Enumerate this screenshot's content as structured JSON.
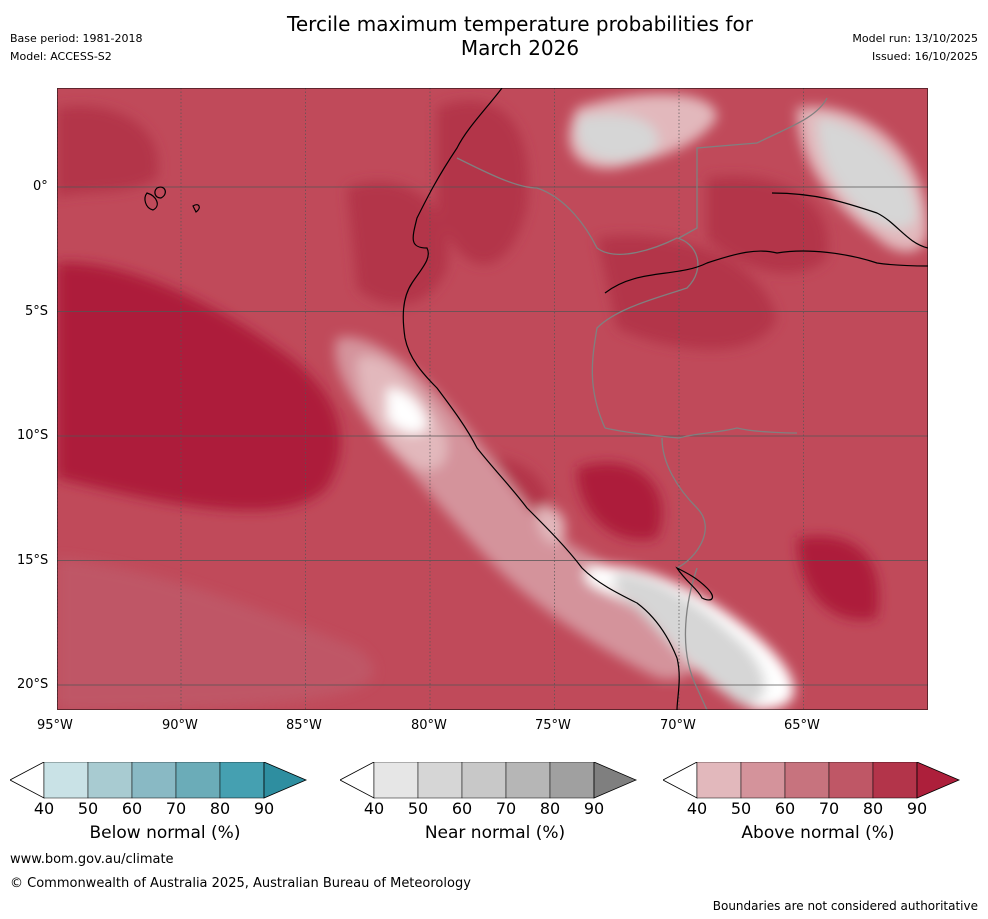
{
  "header": {
    "title_line1": "Tercile maximum temperature probabilities for",
    "title_line2": "March 2026",
    "base_period": "Base period: 1981-2018",
    "model": "Model: ACCESS-S2",
    "model_run": "Model run: 13/10/2025",
    "issued": "Issued: 16/10/2025"
  },
  "map": {
    "lat_labels": [
      "0°",
      "5°S",
      "10°S",
      "15°S",
      "20°S"
    ],
    "lon_labels": [
      "95°W",
      "90°W",
      "85°W",
      "80°W",
      "75°W",
      "70°W",
      "65°W"
    ]
  },
  "colorbars": [
    {
      "label": "Below normal (%)",
      "ticks": [
        "40",
        "50",
        "60",
        "70",
        "80",
        "90"
      ],
      "colors": [
        "#c9e2e6",
        "#a8cbd1",
        "#89b9c4",
        "#6bacb8",
        "#45a0b1",
        "#2e8ea0"
      ]
    },
    {
      "label": "Near normal (%)",
      "ticks": [
        "40",
        "50",
        "60",
        "70",
        "80",
        "90"
      ],
      "colors": [
        "#e6e6e6",
        "#d6d6d6",
        "#c8c8c8",
        "#b6b6b6",
        "#a0a0a0",
        "#7f7f7f"
      ]
    },
    {
      "label": "Above normal (%)",
      "ticks": [
        "40",
        "50",
        "60",
        "70",
        "80",
        "90"
      ],
      "colors": [
        "#e2b8bc",
        "#d4939b",
        "#c7737e",
        "#bf5766",
        "#b3344a",
        "#ad1f3b"
      ]
    }
  ],
  "footer": {
    "url": "www.bom.gov.au/climate",
    "copyright": "© Commonwealth of Australia 2025, Australian Bureau of Meteorology",
    "disclaimer": "Boundaries are not considered authoritative"
  }
}
